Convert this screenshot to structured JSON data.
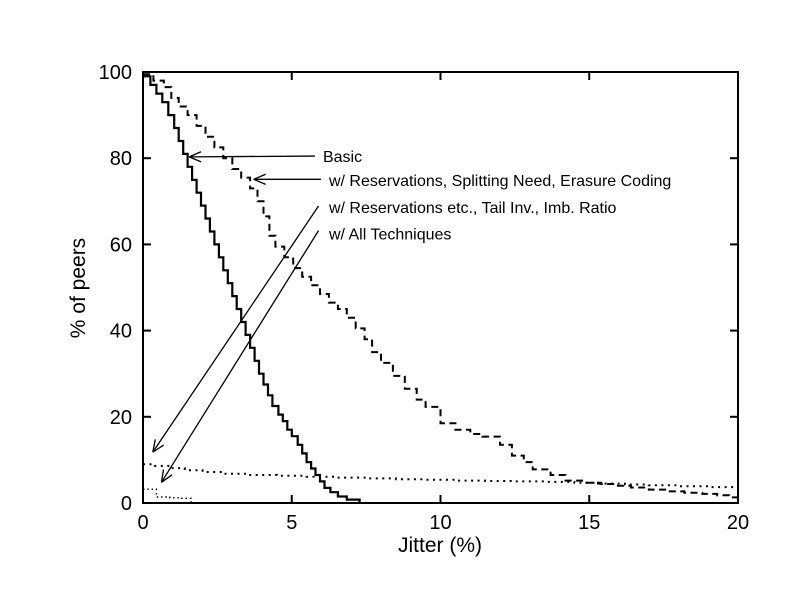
{
  "figure": {
    "background_color": "#ffffff",
    "foreground_color": "#000000"
  },
  "chart_data": {
    "type": "line",
    "variant": "step-cdf",
    "title": "",
    "xlabel": "Jitter (%)",
    "ylabel": "% of peers",
    "xlim": [
      0,
      20
    ],
    "ylim": [
      0,
      100
    ],
    "xticks": [
      0,
      5,
      10,
      15,
      20
    ],
    "yticks": [
      0,
      20,
      40,
      60,
      80,
      100
    ],
    "grid": false,
    "legend_position": "inline-arrow-annotations",
    "line_color": "#000000",
    "series": [
      {
        "name": "Basic",
        "line_style": "solid",
        "points": [
          [
            0,
            99
          ],
          [
            0.25,
            97
          ],
          [
            0.45,
            95
          ],
          [
            0.65,
            93
          ],
          [
            0.85,
            90
          ],
          [
            1.05,
            87
          ],
          [
            1.2,
            84
          ],
          [
            1.35,
            81
          ],
          [
            1.5,
            78
          ],
          [
            1.65,
            75
          ],
          [
            1.8,
            72
          ],
          [
            1.95,
            69
          ],
          [
            2.1,
            66
          ],
          [
            2.25,
            63
          ],
          [
            2.4,
            60
          ],
          [
            2.55,
            57
          ],
          [
            2.7,
            54
          ],
          [
            2.85,
            51
          ],
          [
            3.0,
            48
          ],
          [
            3.15,
            45
          ],
          [
            3.3,
            42
          ],
          [
            3.45,
            39
          ],
          [
            3.6,
            36
          ],
          [
            3.75,
            33
          ],
          [
            3.9,
            30
          ],
          [
            4.05,
            27.5
          ],
          [
            4.2,
            25
          ],
          [
            4.35,
            22.5
          ],
          [
            4.55,
            20.5
          ],
          [
            4.7,
            19
          ],
          [
            4.85,
            17
          ],
          [
            5.0,
            15.5
          ],
          [
            5.2,
            13.5
          ],
          [
            5.35,
            11.5
          ],
          [
            5.5,
            9.5
          ],
          [
            5.65,
            8
          ],
          [
            5.8,
            6.5
          ],
          [
            5.95,
            5
          ],
          [
            6.1,
            3.5
          ],
          [
            6.3,
            2.5
          ],
          [
            6.55,
            1.5
          ],
          [
            6.85,
            0.8
          ],
          [
            7.28,
            0
          ]
        ]
      },
      {
        "name": "w/ Reservations, Splitting Need, Erasure Coding",
        "line_style": "dashed",
        "points": [
          [
            0,
            99.5
          ],
          [
            0.35,
            98
          ],
          [
            0.7,
            96.5
          ],
          [
            0.95,
            94
          ],
          [
            1.2,
            92
          ],
          [
            1.5,
            90
          ],
          [
            1.8,
            87.5
          ],
          [
            2.1,
            85
          ],
          [
            2.4,
            82.5
          ],
          [
            2.7,
            80
          ],
          [
            3.0,
            77.5
          ],
          [
            3.3,
            75.5
          ],
          [
            3.6,
            73
          ],
          [
            3.85,
            70
          ],
          [
            4.05,
            66.5
          ],
          [
            4.25,
            62
          ],
          [
            4.45,
            59.5
          ],
          [
            4.75,
            57
          ],
          [
            5.05,
            54.5
          ],
          [
            5.35,
            52.5
          ],
          [
            5.65,
            50.5
          ],
          [
            5.95,
            48.5
          ],
          [
            6.25,
            46.5
          ],
          [
            6.55,
            45
          ],
          [
            6.85,
            43
          ],
          [
            7.15,
            40.5
          ],
          [
            7.45,
            38
          ],
          [
            7.7,
            35
          ],
          [
            8.0,
            32.5
          ],
          [
            8.4,
            29.5
          ],
          [
            8.8,
            26.5
          ],
          [
            9.2,
            24
          ],
          [
            9.5,
            22.3
          ],
          [
            10.0,
            18.5
          ],
          [
            10.5,
            17
          ],
          [
            11.0,
            16
          ],
          [
            11.4,
            15.4
          ],
          [
            12.0,
            13.5
          ],
          [
            12.4,
            11
          ],
          [
            12.8,
            9.5
          ],
          [
            13.1,
            7.8
          ],
          [
            13.7,
            6.5
          ],
          [
            14.2,
            5.2
          ],
          [
            14.8,
            4.7
          ],
          [
            15.4,
            4.4
          ],
          [
            15.9,
            4.0
          ],
          [
            16.4,
            3.6
          ],
          [
            17.0,
            3.1
          ],
          [
            17.6,
            2.7
          ],
          [
            18.2,
            2.4
          ],
          [
            18.8,
            2.1
          ],
          [
            19.3,
            1.8
          ],
          [
            19.7,
            1.3
          ],
          [
            20,
            0.5
          ]
        ]
      },
      {
        "name": "w/ Reservations etc., Tail Inv., Imb. Ratio",
        "line_style": "dotted",
        "points": [
          [
            0,
            9
          ],
          [
            0.4,
            8.6
          ],
          [
            0.9,
            8.1
          ],
          [
            1.4,
            7.6
          ],
          [
            2.0,
            7.2
          ],
          [
            2.7,
            6.8
          ],
          [
            3.5,
            6.5
          ],
          [
            4.5,
            6.3
          ],
          [
            5.5,
            6.1
          ],
          [
            6.5,
            5.9
          ],
          [
            7.5,
            5.7
          ],
          [
            8.5,
            5.5
          ],
          [
            9.5,
            5.4
          ],
          [
            10.5,
            5.2
          ],
          [
            11.5,
            5.1
          ],
          [
            12.5,
            5.0
          ],
          [
            13.5,
            4.9
          ],
          [
            14.5,
            4.7
          ],
          [
            15.3,
            4.5
          ],
          [
            16.2,
            4.3
          ],
          [
            17.0,
            4.1
          ],
          [
            18.0,
            3.9
          ],
          [
            19.0,
            3.7
          ],
          [
            20,
            3.5
          ]
        ]
      },
      {
        "name": "w/ All Techniques",
        "line_style": "fine-dotted",
        "points": [
          [
            0,
            3.2
          ],
          [
            0.45,
            1.4
          ],
          [
            0.9,
            1.2
          ],
          [
            1.3,
            1.1
          ],
          [
            1.62,
            0.1
          ]
        ]
      }
    ],
    "annotations": [
      {
        "label": "Basic",
        "text_xy": [
          6.05,
          80.4
        ],
        "arrow_from": [
          5.78,
          80.5
        ],
        "arrow_to": [
          1.55,
          80.3
        ]
      },
      {
        "label": "w/ Reservations, Splitting Need, Erasure Coding",
        "text_xy": [
          6.25,
          74.8
        ],
        "arrow_from": [
          5.98,
          75.1
        ],
        "arrow_to": [
          3.72,
          75.1
        ]
      },
      {
        "label": "w/ Reservations etc., Tail Inv., Imb. Ratio",
        "text_xy": [
          6.25,
          68.6
        ],
        "arrow_from": [
          5.9,
          68.9
        ],
        "arrow_to": [
          0.33,
          11.8
        ]
      },
      {
        "label": "w/ All Techniques",
        "text_xy": [
          6.25,
          62.4
        ],
        "arrow_from": [
          5.9,
          63.2
        ],
        "arrow_to": [
          0.62,
          4.8
        ]
      }
    ]
  }
}
